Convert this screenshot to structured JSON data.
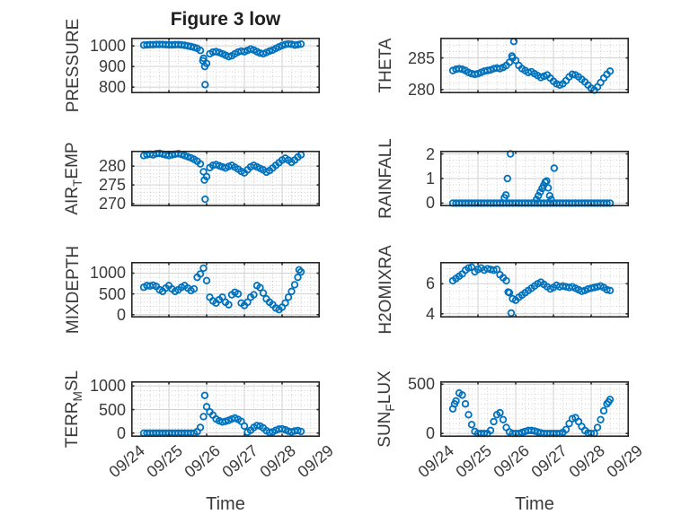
{
  "title": "Figure 3 low",
  "style": {
    "marker_color": "#0072BD",
    "axis_color": "#262626",
    "grid_major_color": "#d2d2d2",
    "grid_minor_color": "#c6c6c6",
    "text_color": "#3a3a3a",
    "background": "#ffffff"
  },
  "xaxis": {
    "label": "Time",
    "lim": [
      0,
      5
    ],
    "major_ticks": [
      0,
      1,
      2,
      3,
      4,
      5
    ],
    "tick_labels": [
      "09/24",
      "09/25",
      "09/26",
      "09/27",
      "09/28",
      "09/29"
    ],
    "minor_step": 0.25,
    "tick_label_rotation_deg": -40
  },
  "time_base": {
    "t_start": 0.3333,
    "t_step": 0.08333
  },
  "chart_data": [
    {
      "type": "scatter",
      "key": "pressure",
      "row": 0,
      "col": 0,
      "ylabel": "PRESSURE",
      "ylim": [
        770,
        1040
      ],
      "yticks": [
        800,
        900,
        1000
      ],
      "yminor": 25,
      "values": [
        1004,
        1005,
        1006,
        1006,
        1007,
        1007,
        1007,
        1006,
        1005,
        1005,
        1006,
        1006,
        1005,
        1003,
        1000,
        997,
        993,
        988,
        978,
        940,
        915,
        962,
        970,
        972,
        968,
        962,
        955,
        948,
        952,
        962,
        970,
        975,
        972,
        978,
        985,
        980,
        972,
        965,
        962,
        968,
        975,
        980,
        988,
        995,
        1002,
        1007,
        1010,
        1008,
        1004,
        1006,
        1009
      ],
      "extras": [
        [
          1.9,
          928
        ],
        [
          1.95,
          900
        ],
        [
          1.96,
          812
        ]
      ]
    },
    {
      "type": "scatter",
      "key": "theta",
      "row": 0,
      "col": 1,
      "ylabel": "THETA",
      "ylim": [
        279.4,
        288.2
      ],
      "yticks": [
        280,
        285
      ],
      "yminor": 1,
      "values": [
        283.0,
        283.2,
        283.3,
        283.2,
        283.0,
        282.7,
        282.5,
        282.4,
        282.5,
        282.7,
        282.9,
        283.0,
        283.1,
        283.3,
        283.4,
        283.3,
        283.5,
        283.8,
        284.3,
        285.0,
        284.6,
        283.8,
        283.3,
        283.0,
        282.7,
        282.8,
        282.5,
        282.2,
        281.9,
        282.1,
        282.3,
        281.8,
        281.3,
        280.9,
        280.7,
        280.9,
        281.4,
        282.0,
        282.4,
        282.3,
        282.0,
        281.6,
        281.2,
        280.7,
        280.2,
        279.9,
        280.4,
        281.1,
        281.8,
        282.4,
        282.9
      ],
      "extras": [
        [
          1.9,
          285.3
        ],
        [
          1.95,
          287.6
        ]
      ]
    },
    {
      "type": "scatter",
      "key": "air_temp",
      "row": 1,
      "col": 0,
      "ylabel": "AIR_{T}EMP",
      "ylim": [
        269.3,
        284.1
      ],
      "yticks": [
        270,
        275,
        280
      ],
      "yminor": 1,
      "values": [
        282.8,
        283.0,
        283.2,
        283.0,
        283.3,
        283.4,
        283.2,
        283.0,
        282.8,
        283.0,
        283.2,
        283.3,
        283.1,
        282.8,
        282.5,
        282.2,
        281.8,
        281.3,
        280.6,
        278.5,
        277.2,
        279.6,
        280.2,
        280.4,
        280.1,
        279.8,
        279.5,
        279.9,
        280.2,
        279.7,
        279.2,
        278.6,
        278.2,
        279.0,
        279.8,
        280.2,
        279.8,
        279.4,
        279.0,
        278.4,
        278.8,
        279.5,
        280.2,
        280.9,
        281.6,
        282.1,
        281.6,
        281.0,
        281.6,
        282.4,
        283.0
      ],
      "extras": [
        [
          1.94,
          276.3
        ],
        [
          1.96,
          271.2
        ]
      ]
    },
    {
      "type": "scatter",
      "key": "rainfall",
      "row": 1,
      "col": 1,
      "ylabel": "RAINFALL",
      "ylim": [
        -0.13,
        2.13
      ],
      "yticks": [
        0,
        1,
        2
      ],
      "yminor": 0.25,
      "values": [
        0,
        0,
        0,
        0,
        0,
        0,
        0,
        0,
        0,
        0,
        0,
        0,
        0,
        0,
        0,
        0,
        0,
        0,
        0,
        0,
        0,
        0,
        0,
        0,
        0,
        0,
        0,
        0,
        0,
        0,
        0,
        0,
        0,
        0,
        0,
        0,
        0,
        0,
        0,
        0,
        0,
        0,
        0,
        0,
        0,
        0,
        0,
        0,
        0,
        0,
        0
      ],
      "extras": [
        [
          1.7,
          0.22
        ],
        [
          1.74,
          0.33
        ],
        [
          1.78,
          1.0
        ],
        [
          1.86,
          2.0
        ],
        [
          2.55,
          0.15
        ],
        [
          2.6,
          0.3
        ],
        [
          2.65,
          0.45
        ],
        [
          2.7,
          0.6
        ],
        [
          2.74,
          0.72
        ],
        [
          2.78,
          0.85
        ],
        [
          2.82,
          0.9
        ],
        [
          2.86,
          0.62
        ],
        [
          2.9,
          0.3
        ],
        [
          2.94,
          0.15
        ],
        [
          3.02,
          1.42
        ]
      ]
    },
    {
      "type": "scatter",
      "key": "mixdepth",
      "row": 2,
      "col": 0,
      "ylabel": "MIXDEPTH",
      "ylim": [
        -70,
        1270
      ],
      "yticks": [
        0,
        500,
        1000
      ],
      "yminor": 100,
      "values": [
        660,
        700,
        690,
        710,
        680,
        600,
        560,
        640,
        700,
        620,
        560,
        600,
        660,
        700,
        640,
        580,
        620,
        900,
        980,
        1120,
        820,
        420,
        330,
        280,
        360,
        420,
        300,
        240,
        480,
        540,
        500,
        280,
        220,
        300,
        420,
        480,
        700,
        650,
        520,
        380,
        300,
        240,
        160,
        120,
        180,
        280,
        420,
        560,
        720,
        900,
        1030
      ],
      "extras": [
        [
          4.45,
          1080
        ]
      ]
    },
    {
      "type": "scatter",
      "key": "h2omixra",
      "row": 2,
      "col": 1,
      "ylabel": "H2OMIXRA",
      "ylim": [
        3.75,
        7.45
      ],
      "yticks": [
        4,
        6
      ],
      "yminor": 0.5,
      "values": [
        6.2,
        6.35,
        6.5,
        6.65,
        6.9,
        7.05,
        7.1,
        6.8,
        6.95,
        7.05,
        6.9,
        7.0,
        6.95,
        6.9,
        6.95,
        6.6,
        6.4,
        6.2,
        5.4,
        5.0,
        4.9,
        5.1,
        5.25,
        5.4,
        5.55,
        5.7,
        5.85,
        6.0,
        6.1,
        5.95,
        5.8,
        5.65,
        5.75,
        5.9,
        5.8,
        5.85,
        5.8,
        5.75,
        5.8,
        5.7,
        5.6,
        5.5,
        5.55,
        5.65,
        5.7,
        5.75,
        5.8,
        5.85,
        5.75,
        5.6,
        5.55
      ],
      "extras": [
        [
          1.8,
          5.45
        ],
        [
          1.88,
          4.05
        ]
      ]
    },
    {
      "type": "scatter",
      "key": "terr_msl",
      "row": 3,
      "col": 0,
      "ylabel": "TERR_{M}SL",
      "ylim": [
        -80,
        1100
      ],
      "yticks": [
        0,
        500,
        1000
      ],
      "yminor": 100,
      "values": [
        0,
        0,
        0,
        0,
        0,
        0,
        0,
        0,
        0,
        0,
        0,
        0,
        0,
        0,
        0,
        0,
        0,
        30,
        120,
        350,
        560,
        450,
        380,
        300,
        260,
        235,
        250,
        270,
        300,
        320,
        290,
        250,
        150,
        20,
        60,
        120,
        160,
        150,
        110,
        50,
        15,
        25,
        60,
        85,
        90,
        70,
        40,
        25,
        45,
        55,
        35
      ],
      "extras": [
        [
          1.95,
          800
        ]
      ]
    },
    {
      "type": "scatter",
      "key": "sun_flux",
      "row": 3,
      "col": 1,
      "ylabel": "SUN_{F}LUX",
      "ylim": [
        -35,
        530
      ],
      "yticks": [
        0,
        500
      ],
      "yminor": 50,
      "values": [
        250,
        330,
        410,
        390,
        300,
        190,
        90,
        20,
        0,
        0,
        0,
        0,
        30,
        120,
        190,
        210,
        140,
        60,
        15,
        0,
        0,
        0,
        10,
        20,
        30,
        30,
        25,
        15,
        5,
        0,
        0,
        0,
        0,
        0,
        0,
        10,
        40,
        100,
        150,
        160,
        120,
        70,
        30,
        5,
        0,
        0,
        60,
        140,
        230,
        300,
        345
      ],
      "extras": [
        [
          0.38,
          300
        ],
        [
          4.46,
          320
        ]
      ]
    }
  ]
}
